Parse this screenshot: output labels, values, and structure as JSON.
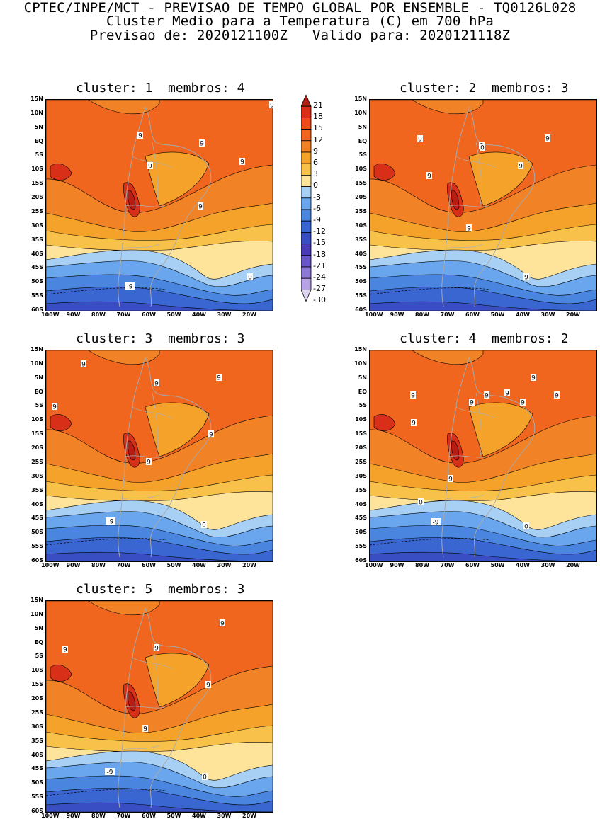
{
  "header": {
    "line1": "CPTEC/INPE/MCT - PREVISAO DE TEMPO GLOBAL POR ENSEMBLE - TQ0126L028",
    "line2": "Cluster Medio para a Temperatura (C) em 700 hPa",
    "line3": "Previsao de: 2020121100Z   Valido para: 2020121118Z"
  },
  "axes": {
    "lat_labels": [
      "15N",
      "10N",
      "5N",
      "EQ",
      "5S",
      "10S",
      "15S",
      "20S",
      "25S",
      "30S",
      "35S",
      "40S",
      "45S",
      "50S",
      "55S",
      "60S"
    ],
    "lon_labels": [
      "100W",
      "90W",
      "80W",
      "70W",
      "60W",
      "50W",
      "40W",
      "30W",
      "20W"
    ]
  },
  "colorbar": {
    "levels": [
      "21",
      "18",
      "15",
      "12",
      "9",
      "6",
      "3",
      "0",
      "-3",
      "-6",
      "-9",
      "-12",
      "-15",
      "-18",
      "-21",
      "-24",
      "-27",
      "-30"
    ],
    "colors": [
      "#b81d14",
      "#d83018",
      "#ee4a1a",
      "#f0661e",
      "#f28226",
      "#f5a22a",
      "#f8c24a",
      "#fde49a",
      "#a8d0f5",
      "#6aa6ee",
      "#4a86e0",
      "#3a66d2",
      "#3a4ec4",
      "#4a3ab8",
      "#6a56c8",
      "#8e78d6",
      "#b6a2e4",
      "#ddd2f2"
    ]
  },
  "palette": {
    "warm12": "#f0661e",
    "warm9": "#f28226",
    "warm6": "#f5a22a",
    "warm3": "#f8c24a",
    "warm0": "#fde49a",
    "cold0": "#a8d0f5",
    "coldm3": "#6aa6ee",
    "coldm6": "#4a86e0",
    "coldm9": "#3a66d2",
    "coldm12": "#3a4ec4",
    "hot15": "#d83018",
    "hot18": "#b81d14"
  },
  "panels": [
    {
      "title": "cluster: 1  membros: 4",
      "labels": [
        "9",
        "9",
        "9",
        "9",
        "9",
        "9",
        "0",
        "-9"
      ]
    },
    {
      "title": "cluster: 2  membros: 3",
      "labels": [
        "9",
        "9",
        "9",
        "9",
        "9",
        "9",
        "9",
        "0"
      ]
    },
    {
      "title": "cluster: 3  membros: 3",
      "labels": [
        "9",
        "9",
        "9",
        "9",
        "9",
        "9",
        "-9",
        "0"
      ]
    },
    {
      "title": "cluster: 4  membros: 2",
      "labels": [
        "9",
        "9",
        "9",
        "9",
        "9",
        "9",
        "9",
        "9",
        "9",
        "0",
        "-9",
        "0"
      ]
    },
    {
      "title": "cluster: 5  membros: 3",
      "labels": [
        "9",
        "9",
        "9",
        "9",
        "9",
        "-9",
        "0"
      ]
    }
  ]
}
